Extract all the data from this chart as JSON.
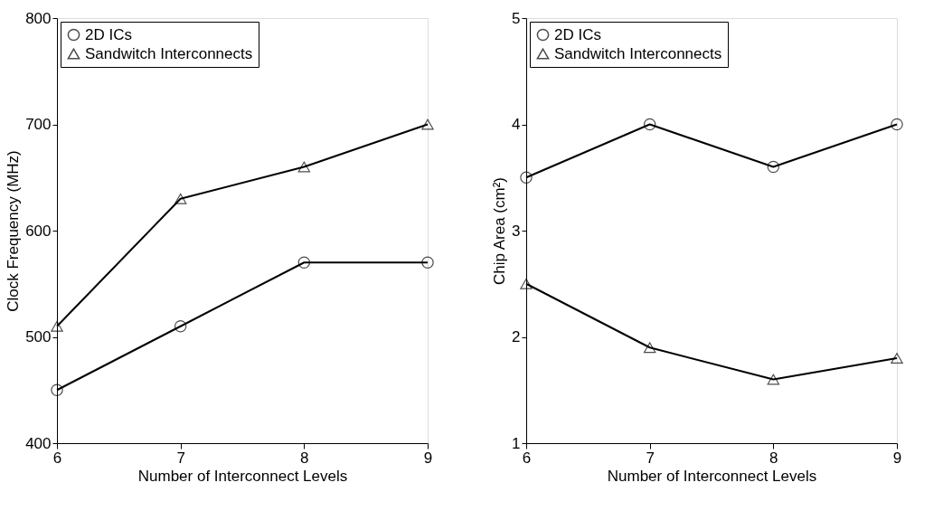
{
  "chart_data": [
    {
      "type": "line",
      "xlabel": "Number of Interconnect Levels",
      "ylabel": "Clock Frequency (MHz)",
      "x": [
        6,
        7,
        8,
        9
      ],
      "xlim": [
        6,
        9
      ],
      "xticks": [
        6,
        7,
        8,
        9
      ],
      "ylim": [
        400,
        800
      ],
      "yticks": [
        400,
        500,
        600,
        700,
        800
      ],
      "grid": false,
      "legend": "top left",
      "series": [
        {
          "name": "2D ICs",
          "color": "#000000",
          "marker": "circle",
          "values": [
            450,
            510,
            570,
            570
          ]
        },
        {
          "name": "Sandwitch Interconnects",
          "color": "#000000",
          "marker": "triangle",
          "values": [
            510,
            630,
            660,
            700
          ]
        }
      ]
    },
    {
      "type": "line",
      "xlabel": "Number of Interconnect Levels",
      "ylabel": "Chip Area (cm²)",
      "x": [
        6,
        7,
        8,
        9
      ],
      "xlim": [
        6,
        9
      ],
      "xticks": [
        6,
        7,
        8,
        9
      ],
      "ylim": [
        1,
        5
      ],
      "yticks": [
        1,
        2,
        3,
        4,
        5
      ],
      "grid": false,
      "legend": "top left",
      "series": [
        {
          "name": "2D ICs",
          "color": "#000000",
          "marker": "circle",
          "values": [
            3.5,
            4.0,
            3.6,
            4.0
          ]
        },
        {
          "name": "Sandwitch Interconnects",
          "color": "#000000",
          "marker": "triangle",
          "values": [
            2.5,
            1.9,
            1.6,
            1.8
          ]
        }
      ]
    }
  ]
}
